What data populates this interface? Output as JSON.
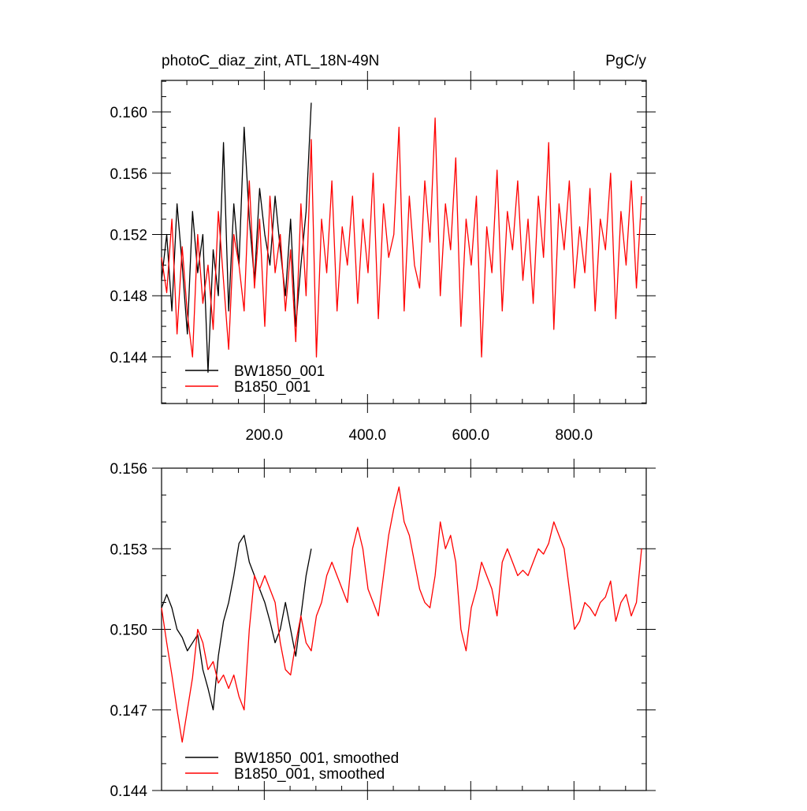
{
  "chart_data": [
    {
      "type": "line",
      "title": "photoC_diaz_zint, ATL_18N-49N",
      "y_units": "PgC/y",
      "xlim": [
        1,
        940
      ],
      "ylim": [
        0.14096,
        0.16206
      ],
      "xticks": [
        {
          "value": 200,
          "label": "200.0"
        },
        {
          "value": 400,
          "label": "400.0"
        },
        {
          "value": 600,
          "label": "600.0"
        },
        {
          "value": 800,
          "label": "800.0"
        }
      ],
      "yticks": [
        0.144,
        0.148,
        0.152,
        0.156,
        {
          "value": 0.16,
          "label": "0.160"
        }
      ],
      "x": [
        1,
        11,
        21,
        31,
        41,
        51,
        61,
        71,
        81,
        91,
        101,
        111,
        121,
        131,
        141,
        151,
        161,
        171,
        181,
        191,
        201,
        211,
        221,
        231,
        241,
        251,
        261,
        271,
        281,
        291,
        301,
        311,
        321,
        331,
        341,
        351,
        361,
        371,
        381,
        391,
        401,
        411,
        421,
        431,
        441,
        451,
        461,
        471,
        481,
        491,
        501,
        511,
        521,
        531,
        541,
        551,
        561,
        571,
        581,
        591,
        601,
        611,
        621,
        631,
        641,
        651,
        661,
        671,
        681,
        691,
        701,
        711,
        721,
        731,
        741,
        751,
        761,
        771,
        781,
        791,
        801,
        811,
        821,
        831,
        841,
        851,
        861,
        871,
        881,
        891,
        901,
        911,
        921,
        931
      ],
      "series": [
        {
          "name": "BW1850_001",
          "color": "#000000",
          "values": [
            0.149,
            0.152,
            0.147,
            0.154,
            0.15,
            0.1455,
            0.1535,
            0.1495,
            0.152,
            0.143,
            0.151,
            0.148,
            0.158,
            0.147,
            0.154,
            0.15,
            0.159,
            0.153,
            0.149,
            0.155,
            0.152,
            0.15,
            0.1545,
            0.151,
            0.148,
            0.153,
            0.146,
            0.15,
            0.1535,
            0.1606,
            null,
            null,
            null,
            null,
            null,
            null,
            null,
            null,
            null,
            null,
            null,
            null,
            null,
            null,
            null,
            null,
            null,
            null,
            null,
            null,
            null,
            null,
            null,
            null,
            null,
            null,
            null,
            null,
            null,
            null,
            null,
            null,
            null,
            null,
            null,
            null,
            null,
            null,
            null,
            null,
            null,
            null,
            null,
            null,
            null,
            null,
            null,
            null,
            null,
            null,
            null,
            null,
            null,
            null,
            null,
            null,
            null,
            null,
            null,
            null,
            null,
            null,
            null,
            null
          ]
        },
        {
          "name": "B1850_001",
          "color": "#ff0000",
          "values": [
            0.1505,
            0.1482,
            0.153,
            0.1455,
            0.1512,
            0.1468,
            0.144,
            0.152,
            0.1475,
            0.15,
            0.1458,
            0.1535,
            0.149,
            0.1445,
            0.152,
            0.15,
            0.147,
            0.1555,
            0.1485,
            0.153,
            0.146,
            0.1545,
            0.1495,
            0.152,
            0.147,
            0.151,
            0.145,
            0.154,
            0.148,
            0.1582,
            0.144,
            0.153,
            0.1495,
            0.1555,
            0.147,
            0.1525,
            0.15,
            0.1545,
            0.1475,
            0.153,
            0.1495,
            0.156,
            0.1465,
            0.154,
            0.1505,
            0.152,
            0.159,
            0.147,
            0.1545,
            0.15,
            0.1485,
            0.1555,
            0.1515,
            0.1596,
            0.148,
            0.154,
            0.151,
            0.157,
            0.146,
            0.153,
            0.15,
            0.1545,
            0.144,
            0.1525,
            0.1495,
            0.1562,
            0.147,
            0.1535,
            0.151,
            0.1555,
            0.149,
            0.153,
            0.1475,
            0.1545,
            0.1505,
            0.158,
            0.1458,
            0.154,
            0.151,
            0.1555,
            0.1485,
            0.1525,
            0.1495,
            0.155,
            0.147,
            0.153,
            0.151,
            0.156,
            0.1465,
            0.1535,
            0.15,
            0.1555,
            0.1485,
            0.1545
          ]
        }
      ]
    },
    {
      "type": "line",
      "xlim": [
        1,
        940
      ],
      "ylim": [
        0.144,
        0.156
      ],
      "xticks": [
        200,
        400,
        600,
        800
      ],
      "yticks": [
        0.144,
        0.147,
        {
          "value": 0.15,
          "label": "0.150"
        },
        0.153,
        0.156
      ],
      "x": [
        1,
        11,
        21,
        31,
        41,
        51,
        61,
        71,
        81,
        91,
        101,
        111,
        121,
        131,
        141,
        151,
        161,
        171,
        181,
        191,
        201,
        211,
        221,
        231,
        241,
        251,
        261,
        271,
        281,
        291,
        301,
        311,
        321,
        331,
        341,
        351,
        361,
        371,
        381,
        391,
        401,
        411,
        421,
        431,
        441,
        451,
        461,
        471,
        481,
        491,
        501,
        511,
        521,
        531,
        541,
        551,
        561,
        571,
        581,
        591,
        601,
        611,
        621,
        631,
        641,
        651,
        661,
        671,
        681,
        691,
        701,
        711,
        721,
        731,
        741,
        751,
        761,
        771,
        781,
        791,
        801,
        811,
        821,
        831,
        841,
        851,
        861,
        871,
        881,
        891,
        901,
        911,
        921,
        931
      ],
      "series": [
        {
          "name": "BW1850_001, smoothed",
          "color": "#000000",
          "values": [
            0.1508,
            0.1513,
            0.1508,
            0.15,
            0.1497,
            0.1492,
            0.1495,
            0.1498,
            0.1485,
            0.1478,
            0.147,
            0.149,
            0.1503,
            0.151,
            0.152,
            0.1532,
            0.1535,
            0.1525,
            0.152,
            0.1515,
            0.151,
            0.1503,
            0.1495,
            0.15,
            0.151,
            0.15,
            0.149,
            0.1505,
            0.152,
            0.153,
            null,
            null,
            null,
            null,
            null,
            null,
            null,
            null,
            null,
            null,
            null,
            null,
            null,
            null,
            null,
            null,
            null,
            null,
            null,
            null,
            null,
            null,
            null,
            null,
            null,
            null,
            null,
            null,
            null,
            null,
            null,
            null,
            null,
            null,
            null,
            null,
            null,
            null,
            null,
            null,
            null,
            null,
            null,
            null,
            null,
            null,
            null,
            null,
            null,
            null,
            null,
            null,
            null,
            null,
            null,
            null,
            null,
            null,
            null,
            null,
            null,
            null,
            null,
            null
          ]
        },
        {
          "name": "B1850_001, smoothed",
          "color": "#ff0000",
          "values": [
            0.1508,
            0.1495,
            0.1483,
            0.147,
            0.1458,
            0.147,
            0.1482,
            0.15,
            0.1495,
            0.1485,
            0.1488,
            0.148,
            0.1483,
            0.1478,
            0.1483,
            0.1475,
            0.147,
            0.15,
            0.152,
            0.1515,
            0.152,
            0.1515,
            0.151,
            0.1495,
            0.1485,
            0.1483,
            0.1495,
            0.1505,
            0.1495,
            0.1492,
            0.1505,
            0.151,
            0.152,
            0.1525,
            0.152,
            0.1515,
            0.151,
            0.153,
            0.1538,
            0.153,
            0.1515,
            0.151,
            0.1505,
            0.152,
            0.1535,
            0.1545,
            0.1553,
            0.154,
            0.1535,
            0.1525,
            0.1515,
            0.151,
            0.1508,
            0.152,
            0.154,
            0.153,
            0.1535,
            0.1525,
            0.15,
            0.1492,
            0.1508,
            0.1515,
            0.1525,
            0.152,
            0.1515,
            0.1505,
            0.1525,
            0.153,
            0.1525,
            0.152,
            0.1522,
            0.152,
            0.1525,
            0.153,
            0.1528,
            0.1532,
            0.154,
            0.1535,
            0.153,
            0.1515,
            0.15,
            0.1503,
            0.151,
            0.1508,
            0.1505,
            0.151,
            0.1512,
            0.1518,
            0.1503,
            0.151,
            0.1513,
            0.1505,
            0.151,
            0.153
          ]
        }
      ]
    }
  ]
}
